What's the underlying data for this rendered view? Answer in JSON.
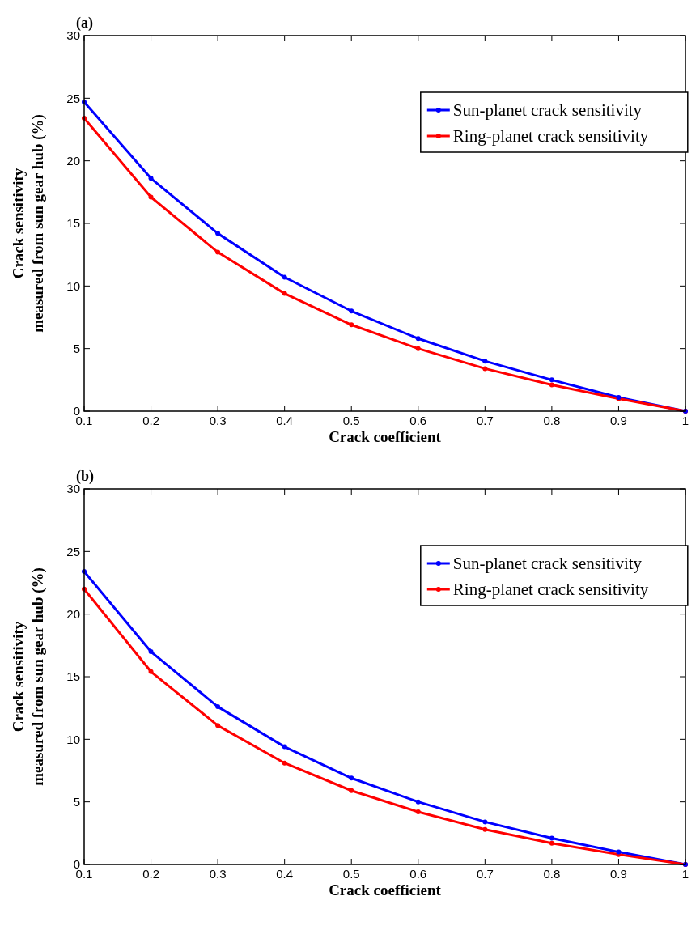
{
  "chart_data": [
    {
      "type": "line",
      "title": "(a)",
      "xlabel": "Crack coefficient",
      "ylabel": "Crack sensitivity\nmeasured from sun gear hub (%)",
      "x": [
        0.1,
        0.2,
        0.3,
        0.4,
        0.5,
        0.6,
        0.7,
        0.8,
        0.9,
        1
      ],
      "series": [
        {
          "name": "Sun-planet crack sensitivity",
          "color": "#0000ff",
          "values": [
            24.7,
            18.6,
            14.2,
            10.7,
            8.0,
            5.8,
            4.0,
            2.5,
            1.1,
            0
          ]
        },
        {
          "name": "Ring-planet crack sensitivity",
          "color": "#ff0000",
          "values": [
            23.4,
            17.1,
            12.7,
            9.4,
            6.9,
            5.0,
            3.4,
            2.1,
            1.0,
            0
          ]
        }
      ],
      "xlim": [
        0.1,
        1
      ],
      "xticks": [
        0.1,
        0.2,
        0.3,
        0.4,
        0.5,
        0.6,
        0.7,
        0.8,
        0.9,
        1
      ],
      "ylim": [
        0,
        30
      ],
      "yticks": [
        0,
        5,
        10,
        15,
        20,
        25,
        30
      ],
      "legend": "top right",
      "marker": "circle",
      "line_style": "solid",
      "grid": false
    },
    {
      "type": "line",
      "title": "(b)",
      "xlabel": "Crack coefficient",
      "ylabel": "Crack sensitivity\nmeasured from sun gear hub (%)",
      "x": [
        0.1,
        0.2,
        0.3,
        0.4,
        0.5,
        0.6,
        0.7,
        0.8,
        0.9,
        1
      ],
      "series": [
        {
          "name": "Sun-planet crack sensitivity",
          "color": "#0000ff",
          "values": [
            23.4,
            17.0,
            12.6,
            9.4,
            6.9,
            5.0,
            3.4,
            2.1,
            1.0,
            0
          ]
        },
        {
          "name": "Ring-planet crack sensitivity",
          "color": "#ff0000",
          "values": [
            22.0,
            15.4,
            11.1,
            8.1,
            5.9,
            4.2,
            2.8,
            1.7,
            0.8,
            0
          ]
        }
      ],
      "xlim": [
        0.1,
        1
      ],
      "xticks": [
        0.1,
        0.2,
        0.3,
        0.4,
        0.5,
        0.6,
        0.7,
        0.8,
        0.9,
        1
      ],
      "ylim": [
        0,
        30
      ],
      "yticks": [
        0,
        5,
        10,
        15,
        20,
        25,
        30
      ],
      "legend": "top right",
      "marker": "circle",
      "line_style": "solid",
      "grid": false
    }
  ]
}
